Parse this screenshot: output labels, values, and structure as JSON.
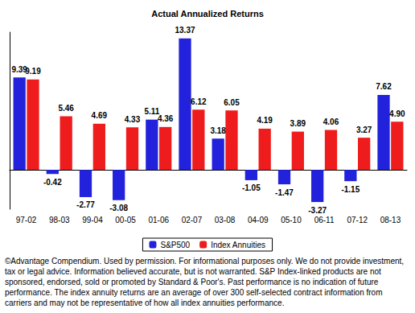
{
  "chart_data": {
    "type": "bar",
    "title": "Actual Annualized Returns",
    "categories": [
      "97-02",
      "98-03",
      "99-04",
      "00-05",
      "01-06",
      "02-07",
      "03-08",
      "04-09",
      "05-10",
      "06-11",
      "07-12",
      "08-13"
    ],
    "series": [
      {
        "name": "S&P500",
        "color": "#2222dd",
        "values": [
          9.39,
          -0.42,
          -2.77,
          -3.08,
          5.11,
          13.37,
          3.18,
          -1.05,
          -1.47,
          -3.27,
          -1.15,
          7.62
        ]
      },
      {
        "name": "Index Annuities",
        "color": "#ee1c1c",
        "values": [
          9.19,
          5.46,
          4.69,
          4.33,
          4.36,
          6.12,
          6.05,
          4.19,
          3.89,
          4.06,
          3.27,
          4.9
        ],
        "value_labels": [
          "9.19",
          "5.46",
          "4.69",
          "4.33",
          "4.36",
          "6.12",
          "6.05",
          "4.19",
          "3.89",
          "4.06",
          "3.27",
          "4.90"
        ]
      }
    ],
    "ylim": [
      -4,
      14
    ],
    "grid": false,
    "legend": "bottom",
    "data_labels": true,
    "tick_labels": "x",
    "annotations": [
      "©Advantage Compendium. Used by permission. For informational purposes only. We do not provide investment, tax or legal advice. Information believed accurate, but is not warranted. S&P Index-linked products are not sponsored, endorsed, sold or promoted by Standard & Poor's. Past performance is no indication of future performance. The index annuity returns are an average  of over 300 self-selected contract information from carriers and may not be representative  of how all index annuities performance."
    ]
  }
}
